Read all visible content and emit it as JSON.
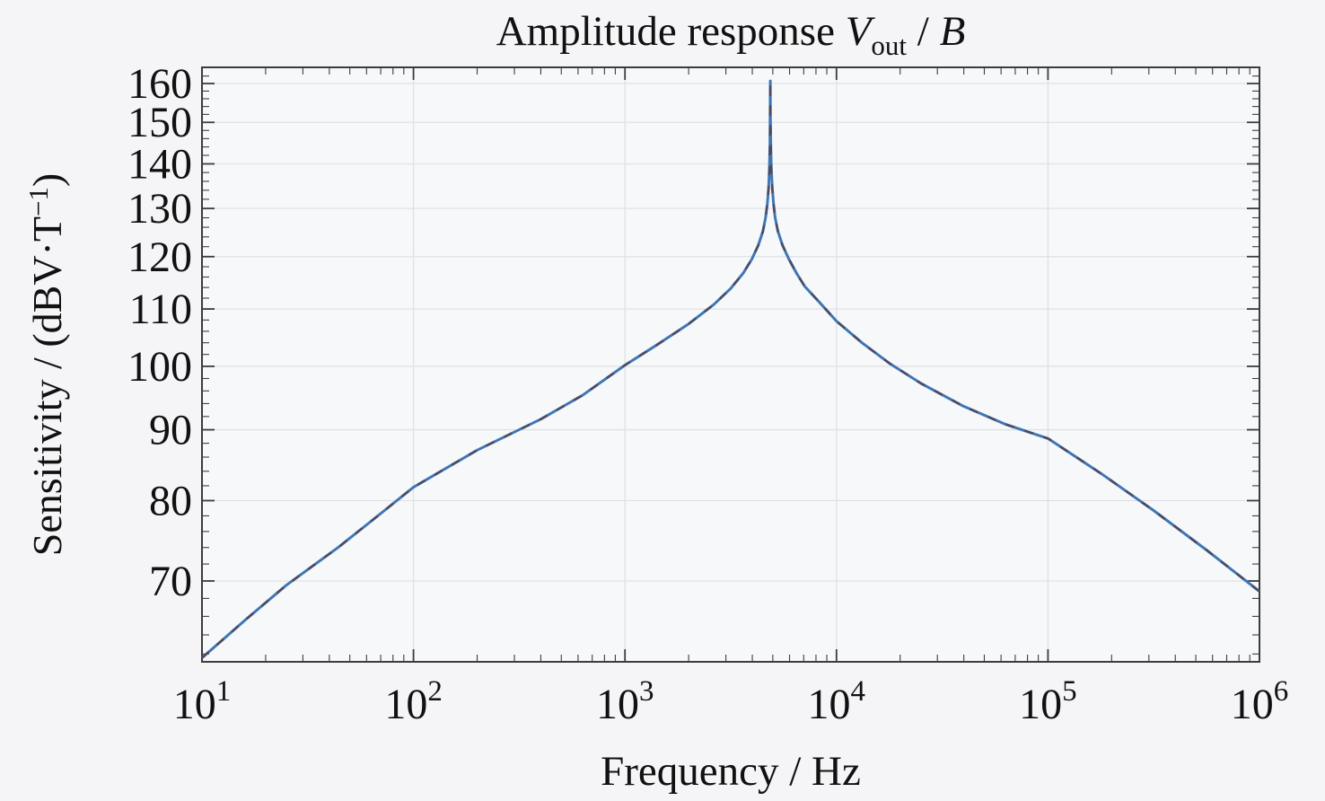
{
  "colors": {
    "background": "#f5f5f7",
    "plot_background": "#f7f8fa",
    "frame": "#3c3c3c",
    "grid": "#e0e1e4",
    "tick": "#3c3c3c",
    "text": "#111111",
    "curve": "#3f76b6",
    "curve_dash_overlay": "#4e4a5e"
  },
  "chart_data": {
    "type": "line",
    "title": {
      "prefix": "Amplitude response ",
      "v_symbol": "V",
      "v_subscript": "out",
      "separator": " / ",
      "b_symbol": "B"
    },
    "xlabel": "Frequency / Hz",
    "ylabel": {
      "prefix": "Sensitivity / (dBV·T",
      "superscript": "−1",
      "suffix": ")"
    },
    "x_axis": {
      "scale": "log",
      "min": 10,
      "max": 1000000,
      "unit": "Hz",
      "tick_base": "10",
      "major_tick_exponents": [
        1,
        2,
        3,
        4,
        5,
        6
      ],
      "minor_ticks": "2-9 per decade",
      "grid": true
    },
    "y_axis": {
      "scale": "log",
      "min": 61,
      "max": 164,
      "unit": "dBV·T⁻¹",
      "major_ticks": [
        70,
        80,
        90,
        100,
        110,
        120,
        130,
        140,
        150,
        160
      ],
      "minor_tick_step_dB": 2,
      "grid": true
    },
    "peak": {
      "frequency_hz": 4860,
      "peak_dB": 160.7,
      "description": "sharp resonance spike"
    },
    "series": [
      {
        "name": "amplitude response Vout/B",
        "style": "solid blue with dark dashed overlay",
        "color": "#3f76b6",
        "dash_color": "#4e4a5e",
        "points_f_hz_vs_dB": [
          [
            10,
            61.6
          ],
          [
            16,
            65.6
          ],
          [
            25,
            69.5
          ],
          [
            44,
            74.0
          ],
          [
            63,
            77.3
          ],
          [
            100,
            81.8
          ],
          [
            200,
            87.0
          ],
          [
            400,
            91.6
          ],
          [
            630,
            95.3
          ],
          [
            1000,
            100.2
          ],
          [
            1410,
            103.6
          ],
          [
            2000,
            107.3
          ],
          [
            2630,
            110.8
          ],
          [
            3160,
            113.8
          ],
          [
            3630,
            116.8
          ],
          [
            3980,
            119.5
          ],
          [
            4270,
            122.3
          ],
          [
            4490,
            125.2
          ],
          [
            4620,
            128.0
          ],
          [
            4710,
            131.0
          ],
          [
            4775,
            134.5
          ],
          [
            4820,
            139.0
          ],
          [
            4845,
            145.0
          ],
          [
            4858,
            152.0
          ],
          [
            4865,
            160.7
          ],
          [
            4872,
            152.0
          ],
          [
            4890,
            145.0
          ],
          [
            4920,
            139.0
          ],
          [
            4970,
            134.5
          ],
          [
            5040,
            131.0
          ],
          [
            5130,
            128.0
          ],
          [
            5280,
            125.2
          ],
          [
            5560,
            122.3
          ],
          [
            5960,
            119.5
          ],
          [
            6460,
            116.8
          ],
          [
            7080,
            114.2
          ],
          [
            8320,
            111.2
          ],
          [
            10000,
            107.8
          ],
          [
            13200,
            104.0
          ],
          [
            17800,
            100.5
          ],
          [
            25100,
            97.2
          ],
          [
            39800,
            93.6
          ],
          [
            63100,
            90.8
          ],
          [
            100000,
            88.7
          ],
          [
            178000,
            83.7
          ],
          [
            316000,
            78.7
          ],
          [
            562000,
            73.7
          ],
          [
            1000000,
            68.8
          ]
        ]
      }
    ]
  }
}
